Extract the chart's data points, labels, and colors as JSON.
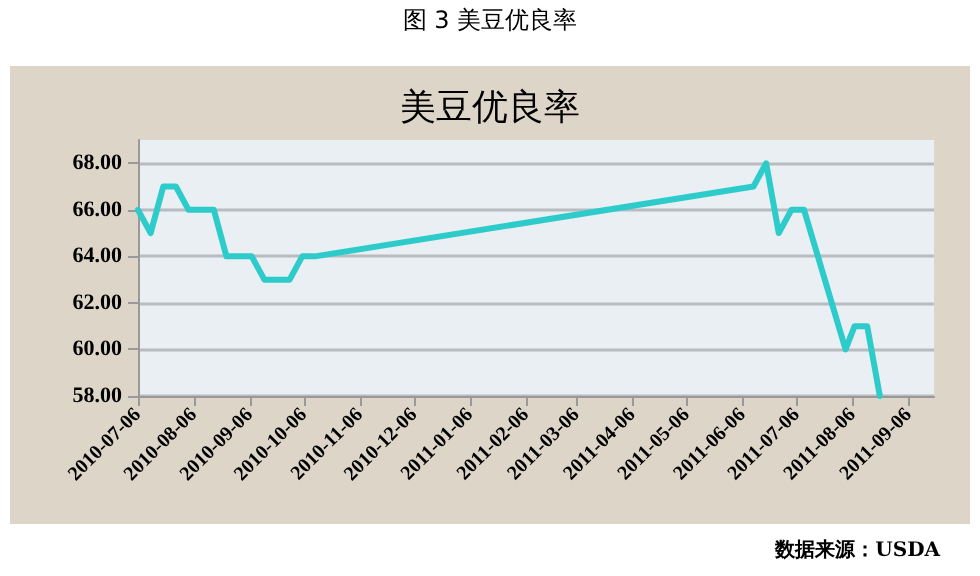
{
  "chart_data": {
    "type": "line",
    "title": "图 3 美豆优良率",
    "subtitle": "美豆优良率",
    "x": [
      "2010-07-06",
      "2010-07-13",
      "2010-07-20",
      "2010-07-27",
      "2010-08-03",
      "2010-08-10",
      "2010-08-17",
      "2010-08-24",
      "2010-08-31",
      "2010-09-07",
      "2010-09-14",
      "2010-09-21",
      "2010-09-28",
      "2010-10-05",
      "2010-10-12",
      "2011-06-12",
      "2011-06-19",
      "2011-06-26",
      "2011-07-03",
      "2011-07-10",
      "2011-08-02",
      "2011-08-07",
      "2011-08-14",
      "2011-08-21"
    ],
    "series": [
      {
        "color": "#2ecbcb",
        "values": [
          66,
          65,
          67,
          67,
          66,
          66,
          66,
          64,
          64,
          64,
          63,
          63,
          63,
          64,
          64,
          67,
          68,
          65,
          66,
          66,
          60,
          61,
          61,
          58
        ]
      }
    ],
    "xlim": [
      "2010-07-06",
      "2011-09-20"
    ],
    "xticks": [
      "2010-07-06",
      "2010-08-06",
      "2010-09-06",
      "2010-10-06",
      "2010-11-06",
      "2010-12-06",
      "2011-01-06",
      "2011-02-06",
      "2011-03-06",
      "2011-04-06",
      "2011-05-06",
      "2011-06-06",
      "2011-07-06",
      "2011-08-06",
      "2011-09-06"
    ],
    "ylim": [
      58,
      69
    ],
    "yticks": [
      {
        "value": 58,
        "label": "58.00"
      },
      {
        "value": 60,
        "label": "60.00"
      },
      {
        "value": 62,
        "label": "62.00"
      },
      {
        "value": 64,
        "label": "64.00"
      },
      {
        "value": 66,
        "label": "66.00"
      },
      {
        "value": 68,
        "label": "68.00"
      }
    ],
    "grid": "y",
    "marker": "none",
    "line_style": "solid",
    "annotations": [
      "数据来源：USDA"
    ]
  }
}
